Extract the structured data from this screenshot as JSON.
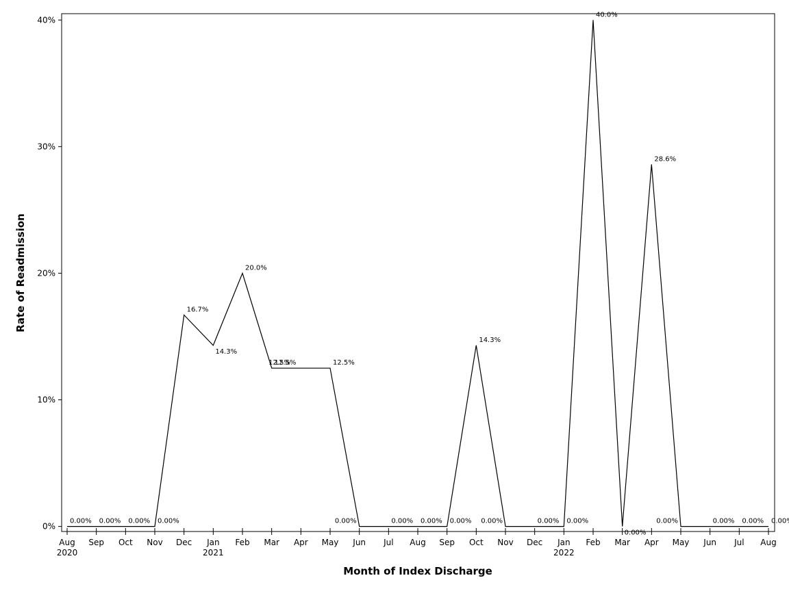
{
  "chart_data": {
    "type": "line",
    "xlabel": "Month of Index Discharge",
    "ylabel": "Rate of Readmission",
    "x": [
      "Aug 2020",
      "Sep 2020",
      "Oct 2020",
      "Nov 2020",
      "Dec 2020",
      "Jan 2021",
      "Feb 2021",
      "Mar 2021",
      "Apr 2021",
      "May 2021",
      "Jun 2021",
      "Jul 2021",
      "Aug 2021",
      "Sep 2021",
      "Oct 2021",
      "Nov 2021",
      "Dec 2021",
      "Jan 2022",
      "Feb 2022",
      "Mar 2022",
      "Apr 2022",
      "May 2022",
      "Jun 2022",
      "Jul 2022",
      "Aug 2022"
    ],
    "x_tick_labels": [
      {
        "month": "Aug",
        "year": "2020"
      },
      {
        "month": "Sep",
        "year": ""
      },
      {
        "month": "Oct",
        "year": ""
      },
      {
        "month": "Nov",
        "year": ""
      },
      {
        "month": "Dec",
        "year": ""
      },
      {
        "month": "Jan",
        "year": "2021"
      },
      {
        "month": "Feb",
        "year": ""
      },
      {
        "month": "Mar",
        "year": ""
      },
      {
        "month": "Apr",
        "year": ""
      },
      {
        "month": "May",
        "year": ""
      },
      {
        "month": "Jun",
        "year": ""
      },
      {
        "month": "Jul",
        "year": ""
      },
      {
        "month": "Aug",
        "year": ""
      },
      {
        "month": "Sep",
        "year": ""
      },
      {
        "month": "Oct",
        "year": ""
      },
      {
        "month": "Nov",
        "year": ""
      },
      {
        "month": "Dec",
        "year": ""
      },
      {
        "month": "Jan",
        "year": "2022"
      },
      {
        "month": "Feb",
        "year": ""
      },
      {
        "month": "Mar",
        "year": ""
      },
      {
        "month": "Apr",
        "year": ""
      },
      {
        "month": "May",
        "year": ""
      },
      {
        "month": "Jun",
        "year": ""
      },
      {
        "month": "Jul",
        "year": ""
      },
      {
        "month": "Aug",
        "year": ""
      }
    ],
    "series": [
      {
        "values": [
          0,
          0,
          0,
          0,
          16.7,
          14.3,
          20.0,
          12.5,
          12.5,
          12.5,
          0,
          0,
          0,
          0,
          14.3,
          0,
          0,
          0,
          40.0,
          0,
          28.6,
          0,
          0,
          0,
          0
        ],
        "point_labels": [
          "0.00%",
          "0.00%",
          "0.00%",
          "0.00%",
          "16.7%",
          "14.3%",
          "20.0%",
          "12.5%",
          null,
          "12.5%",
          "0.00%",
          "0.00%",
          "0.00%",
          "0.00%",
          "14.3%",
          "0.00%",
          "0.00%",
          "0.00%",
          "40.0%",
          "0.00%",
          "28.6%",
          "0.00%",
          "0.00%",
          "0.00%",
          "0.00%"
        ],
        "extra_labels": [
          {
            "between": [
              7,
              8
            ],
            "value": 12.5,
            "text": "12.5%"
          }
        ]
      }
    ],
    "y_ticks": [
      0,
      10,
      20,
      30,
      40
    ],
    "y_tick_labels": [
      "0%",
      "10%",
      "20%",
      "30%",
      "40%"
    ],
    "ylim": [
      -0.4,
      40.5
    ],
    "grid": false,
    "line_color": "#000000"
  }
}
